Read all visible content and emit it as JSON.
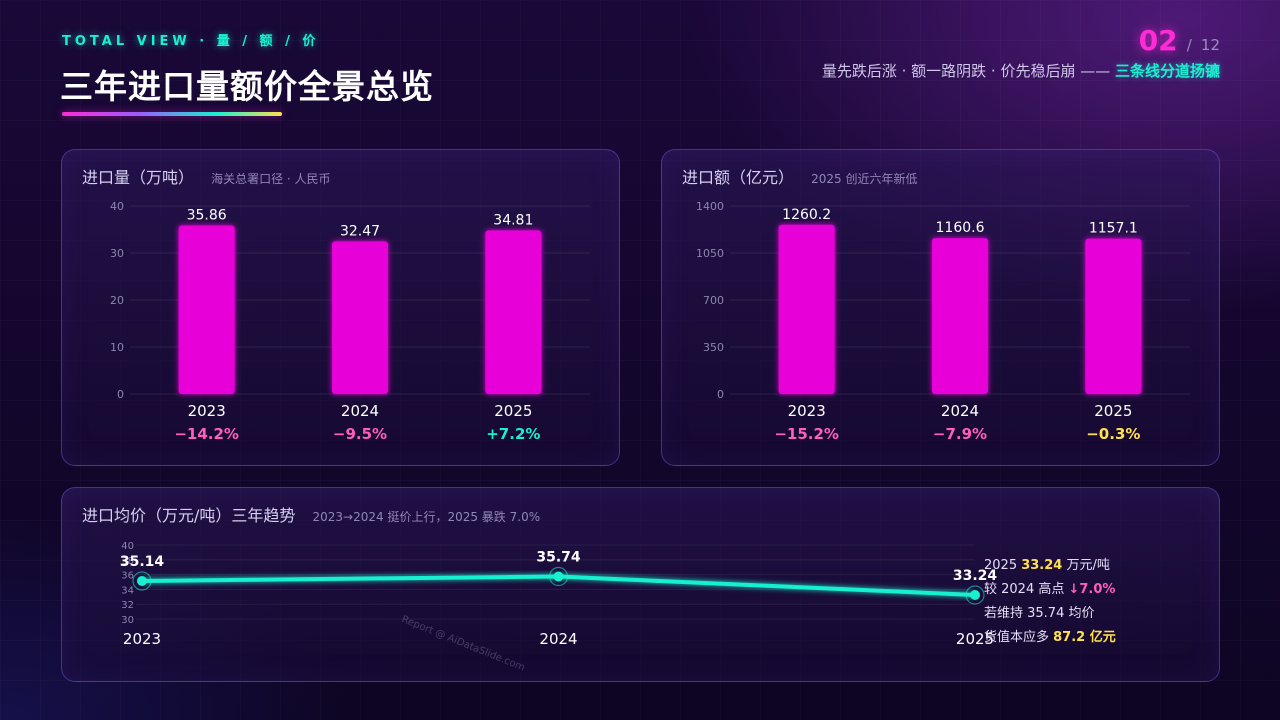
{
  "header": {
    "eyebrow": "TOTAL VIEW · 量 / 额 / 价",
    "title": "三年进口量额价全景总览",
    "page_current": "02",
    "page_sep": "/",
    "page_total": "12",
    "subtitle_main": "量先跌后涨 · 额一路阴跌 · 价先稳后崩 —— ",
    "subtitle_highlight": "三条线分道扬镳"
  },
  "colors": {
    "bar": "#e800d8",
    "line": "#19f0d0",
    "negative": "#ff5fb8",
    "positive": "#19f0d0",
    "neutral": "#ffe14d"
  },
  "volume_panel": {
    "title": "进口量（万吨）",
    "note": "海关总署口径 · 人民币"
  },
  "amount_panel": {
    "title": "进口额（亿元）",
    "note": "2025 创近六年新低"
  },
  "price_panel": {
    "title": "进口均价（万元/吨）三年趋势",
    "note": "2023→2024 挺价上行，2025 暴跌 7.0%",
    "notes": {
      "l1_pre": "2025 ",
      "l1_val": "33.24",
      "l1_post": " 万元/吨",
      "l2_pre": "较 2024 高点 ",
      "l2_val": "↓7.0%",
      "l3": "若维持 35.74 均价",
      "l4_pre": "货值本应多 ",
      "l4_val": "87.2 亿元"
    }
  },
  "watermark": "Report @ AiDataSlide.com",
  "chart_data": [
    {
      "type": "bar",
      "title": "进口量（万吨）",
      "categories": [
        "2023",
        "2024",
        "2025"
      ],
      "values": [
        35.86,
        32.47,
        34.81
      ],
      "value_labels": [
        "35.86",
        "32.47",
        "34.81"
      ],
      "changes": [
        "−14.2%",
        "−9.5%",
        "+7.2%"
      ],
      "change_types": [
        "negative",
        "negative",
        "positive"
      ],
      "ylim": [
        0,
        40
      ],
      "yticks": [
        0,
        10,
        20,
        30,
        40
      ],
      "ytick_labels": [
        "0",
        "10",
        "20",
        "30",
        "40"
      ],
      "grid": true
    },
    {
      "type": "bar",
      "title": "进口额（亿元）",
      "categories": [
        "2023",
        "2024",
        "2025"
      ],
      "values": [
        1260.2,
        1160.6,
        1157.1
      ],
      "value_labels": [
        "1260.2",
        "1160.6",
        "1157.1"
      ],
      "changes": [
        "−15.2%",
        "−7.9%",
        "−0.3%"
      ],
      "change_types": [
        "negative",
        "negative",
        "neutral"
      ],
      "ylim": [
        0,
        1400
      ],
      "yticks": [
        0,
        350,
        700,
        1050,
        1400
      ],
      "ytick_labels": [
        "0",
        "350",
        "700",
        "1050",
        "1400"
      ],
      "grid": true
    },
    {
      "type": "line",
      "title": "进口均价（万元/吨）三年趋势",
      "categories": [
        "2023",
        "2024",
        "2025"
      ],
      "values": [
        35.14,
        35.74,
        33.24
      ],
      "value_labels": [
        "35.14",
        "35.74",
        "33.24"
      ],
      "ylim": [
        30,
        40
      ],
      "yticks": [
        30,
        32,
        34,
        36,
        38,
        40
      ],
      "ytick_labels": [
        "30",
        "32",
        "34",
        "36",
        "38",
        "40"
      ],
      "grid": true
    }
  ]
}
